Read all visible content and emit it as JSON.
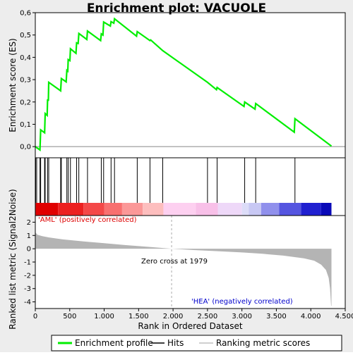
{
  "chart_data": {
    "type": "line",
    "title": "Enrichment plot: VACUOLE",
    "top_panel": {
      "ylabel": "Enrichment score (ES)",
      "ylim": [
        -0.05,
        0.6
      ],
      "yticks": [
        0.0,
        0.1,
        0.2,
        0.3,
        0.4,
        0.5,
        0.6
      ],
      "ytick_labels": [
        "0,0",
        "0,1",
        "0,2",
        "0,3",
        "0,4",
        "0,5",
        "0,6"
      ],
      "series_color": "#00ee00",
      "points": [
        [
          0,
          0.0
        ],
        [
          68,
          -0.015
        ],
        [
          78,
          0.075
        ],
        [
          135,
          0.062
        ],
        [
          143,
          0.148
        ],
        [
          172,
          0.14
        ],
        [
          178,
          0.212
        ],
        [
          190,
          0.205
        ],
        [
          195,
          0.288
        ],
        [
          368,
          0.25
        ],
        [
          378,
          0.305
        ],
        [
          448,
          0.29
        ],
        [
          458,
          0.342
        ],
        [
          472,
          0.338
        ],
        [
          478,
          0.39
        ],
        [
          502,
          0.385
        ],
        [
          510,
          0.438
        ],
        [
          590,
          0.418
        ],
        [
          600,
          0.465
        ],
        [
          622,
          0.462
        ],
        [
          632,
          0.507
        ],
        [
          748,
          0.48
        ],
        [
          758,
          0.518
        ],
        [
          948,
          0.475
        ],
        [
          958,
          0.505
        ],
        [
          982,
          0.5
        ],
        [
          992,
          0.558
        ],
        [
          1090,
          0.54
        ],
        [
          1100,
          0.56
        ],
        [
          1140,
          0.553
        ],
        [
          1150,
          0.573
        ],
        [
          1470,
          0.495
        ],
        [
          1480,
          0.515
        ],
        [
          1665,
          0.475
        ],
        [
          1675,
          0.478
        ],
        [
          1850,
          0.43
        ],
        [
          2500,
          0.288
        ],
        [
          2630,
          0.255
        ],
        [
          2640,
          0.265
        ],
        [
          3030,
          0.18
        ],
        [
          3040,
          0.2
        ],
        [
          3190,
          0.168
        ],
        [
          3200,
          0.193
        ],
        [
          3760,
          0.065
        ],
        [
          3770,
          0.125
        ],
        [
          4300,
          0.002
        ]
      ]
    },
    "hits": [
      5,
      20,
      68,
      78,
      135,
      143,
      178,
      195,
      368,
      378,
      458,
      478,
      510,
      600,
      632,
      758,
      958,
      992,
      1100,
      1150,
      1480,
      1665,
      1850,
      2500,
      2640,
      3040,
      3200,
      3770
    ],
    "middle_panel": {
      "label_left": "'AML' (positively correlated)",
      "label_right": "'HEA' (negatively correlated)",
      "label_left_color": "#dd0000",
      "label_right_color": "#0000cc",
      "colors": [
        "#e00000",
        "#ec2020",
        "#f44848",
        "#f87070",
        "#fb9898",
        "#fdbebe",
        "#fdd0f0",
        "#f8c0e8",
        "#eed8f8",
        "#dcdcf8",
        "#c8c8f4",
        "#9090ec",
        "#5555e0",
        "#2020d0",
        "#0a0ab8"
      ],
      "stops": [
        0,
        330,
        700,
        1000,
        1260,
        1560,
        1860,
        2330,
        2650,
        3000,
        3100,
        3280,
        3540,
        3860,
        4150,
        4300
      ]
    },
    "bottom_panel": {
      "ylabel": "Ranked list metric (Signal2Noise)",
      "ylim": [
        -4.5,
        2.5
      ],
      "yticks": [
        2,
        1,
        0,
        -1,
        -2,
        -3,
        -4
      ],
      "ytick_labels": [
        "2",
        "1",
        "0",
        "-1",
        "-2",
        "-3",
        "-4"
      ],
      "zero_cross": 1979,
      "annotation": "Zero cross at 1979",
      "fill_color": "#b4b4b4",
      "metric_points": [
        [
          0,
          1.25
        ],
        [
          30,
          1.05
        ],
        [
          100,
          0.95
        ],
        [
          200,
          0.85
        ],
        [
          400,
          0.7
        ],
        [
          700,
          0.55
        ],
        [
          1000,
          0.42
        ],
        [
          1300,
          0.28
        ],
        [
          1600,
          0.16
        ],
        [
          1979,
          0.0
        ],
        [
          2300,
          -0.1
        ],
        [
          2700,
          -0.2
        ],
        [
          3000,
          -0.28
        ],
        [
          3300,
          -0.38
        ],
        [
          3600,
          -0.52
        ],
        [
          3900,
          -0.72
        ],
        [
          4050,
          -0.9
        ],
        [
          4150,
          -1.2
        ],
        [
          4220,
          -1.6
        ],
        [
          4260,
          -2.2
        ],
        [
          4280,
          -3.0
        ],
        [
          4295,
          -4.3
        ],
        [
          4300,
          -4.3
        ]
      ]
    },
    "x_axis": {
      "xlabel": "Rank in Ordered Dataset",
      "xlim": [
        0,
        4500
      ],
      "xticks": [
        0,
        500,
        1000,
        1500,
        2000,
        2500,
        3000,
        3500,
        4000,
        4500
      ],
      "xtick_labels": [
        "0",
        "500",
        "1.000",
        "1.500",
        "2.000",
        "2.500",
        "3.000",
        "3.500",
        "4.000",
        "4.500"
      ]
    },
    "legend": {
      "placement": "bottom",
      "items": [
        {
          "label": "Enrichment profile",
          "color": "#00ee00"
        },
        {
          "label": "Hits",
          "color": "#000000"
        },
        {
          "label": "Ranking metric scores",
          "color": "#c0c0c0"
        }
      ]
    }
  }
}
